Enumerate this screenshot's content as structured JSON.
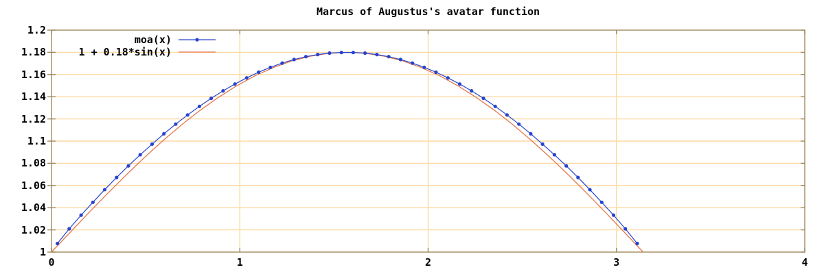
{
  "title": "Marcus of Augustus's avatar function",
  "colors": {
    "background": "#ffffff",
    "border": "#a79168",
    "tick": "#9c8a64",
    "grid": "#ffd9a2",
    "text": "#000000",
    "series_moa": "#2743cd",
    "series_sin": "#e4784e"
  },
  "chart_data": {
    "type": "line",
    "title": "Marcus of Augustus's avatar function",
    "xlabel": "",
    "ylabel": "",
    "grid": true,
    "legend_position": "top-left-inside",
    "x_axis": {
      "min": 0,
      "max": 4,
      "ticks": [
        0,
        1,
        2,
        3,
        4
      ],
      "labels": [
        "0",
        "1",
        "2",
        "3",
        "4"
      ]
    },
    "y_axis": {
      "min": 1,
      "max": 1.2,
      "ticks": [
        1,
        1.02,
        1.04,
        1.06,
        1.08,
        1.1,
        1.12,
        1.14,
        1.16,
        1.18,
        1.2
      ],
      "labels": [
        "1",
        "1.02",
        "1.04",
        "1.06",
        "1.08",
        "1.1",
        "1.12",
        "1.14",
        "1.16",
        "1.18",
        "1.2"
      ]
    },
    "series": [
      {
        "name": "moa(x)",
        "style": "linespoints",
        "marker": "filled-circle",
        "color": "#2743cd",
        "points": [
          [
            0.0314,
            1.0077
          ],
          [
            0.0942,
            1.021
          ],
          [
            0.1571,
            1.0333
          ],
          [
            0.2199,
            1.0449
          ],
          [
            0.2827,
            1.0563
          ],
          [
            0.3456,
            1.0672
          ],
          [
            0.4084,
            1.0777
          ],
          [
            0.4712,
            1.0877
          ],
          [
            0.5341,
            1.0973
          ],
          [
            0.5969,
            1.1066
          ],
          [
            0.6597,
            1.1153
          ],
          [
            0.7226,
            1.1236
          ],
          [
            0.7854,
            1.1313
          ],
          [
            0.8482,
            1.1386
          ],
          [
            0.9111,
            1.1453
          ],
          [
            0.9739,
            1.1514
          ],
          [
            1.0367,
            1.157
          ],
          [
            1.0996,
            1.1621
          ],
          [
            1.1624,
            1.1665
          ],
          [
            1.2252,
            1.1703
          ],
          [
            1.2881,
            1.1735
          ],
          [
            1.3509,
            1.1761
          ],
          [
            1.4137,
            1.178
          ],
          [
            1.4765,
            1.1793
          ],
          [
            1.5394,
            1.1799
          ],
          [
            1.6022,
            1.1799
          ],
          [
            1.665,
            1.1793
          ],
          [
            1.7279,
            1.178
          ],
          [
            1.7907,
            1.1761
          ],
          [
            1.8535,
            1.1735
          ],
          [
            1.9164,
            1.1703
          ],
          [
            1.9792,
            1.1665
          ],
          [
            2.042,
            1.1621
          ],
          [
            2.1049,
            1.157
          ],
          [
            2.1677,
            1.1514
          ],
          [
            2.2305,
            1.1453
          ],
          [
            2.2934,
            1.1386
          ],
          [
            2.3562,
            1.1313
          ],
          [
            2.419,
            1.1236
          ],
          [
            2.4819,
            1.1153
          ],
          [
            2.5447,
            1.1066
          ],
          [
            2.6075,
            1.0973
          ],
          [
            2.6704,
            1.0877
          ],
          [
            2.7332,
            1.0777
          ],
          [
            2.796,
            1.0672
          ],
          [
            2.8588,
            1.0563
          ],
          [
            2.9217,
            1.0449
          ],
          [
            2.9845,
            1.0333
          ],
          [
            3.0473,
            1.021
          ],
          [
            3.1102,
            1.0077
          ]
        ]
      },
      {
        "name": "1 + 0.18*sin(x)",
        "style": "lines",
        "color": "#e4784e",
        "points": [
          [
            0.0,
            1.0
          ],
          [
            0.0982,
            1.0176
          ],
          [
            0.1963,
            1.0351
          ],
          [
            0.2945,
            1.0523
          ],
          [
            0.3927,
            1.0689
          ],
          [
            0.4909,
            1.0848
          ],
          [
            0.589,
            1.1
          ],
          [
            0.6872,
            1.1142
          ],
          [
            0.7854,
            1.1273
          ],
          [
            0.8836,
            1.1391
          ],
          [
            0.9817,
            1.1497
          ],
          [
            1.0799,
            1.1588
          ],
          [
            1.1781,
            1.1663
          ],
          [
            1.2763,
            1.1723
          ],
          [
            1.3744,
            1.1765
          ],
          [
            1.4726,
            1.1791
          ],
          [
            1.5708,
            1.18
          ],
          [
            1.669,
            1.1791
          ],
          [
            1.7671,
            1.1765
          ],
          [
            1.8653,
            1.1723
          ],
          [
            1.9635,
            1.1663
          ],
          [
            2.0617,
            1.1588
          ],
          [
            2.1598,
            1.1497
          ],
          [
            2.258,
            1.1391
          ],
          [
            2.3562,
            1.1273
          ],
          [
            2.4544,
            1.1142
          ],
          [
            2.5525,
            1.1
          ],
          [
            2.6507,
            1.0848
          ],
          [
            2.7489,
            1.0689
          ],
          [
            2.8471,
            1.0523
          ],
          [
            2.9452,
            1.0351
          ],
          [
            3.0434,
            1.0176
          ],
          [
            3.1416,
            1.0
          ]
        ]
      }
    ]
  }
}
